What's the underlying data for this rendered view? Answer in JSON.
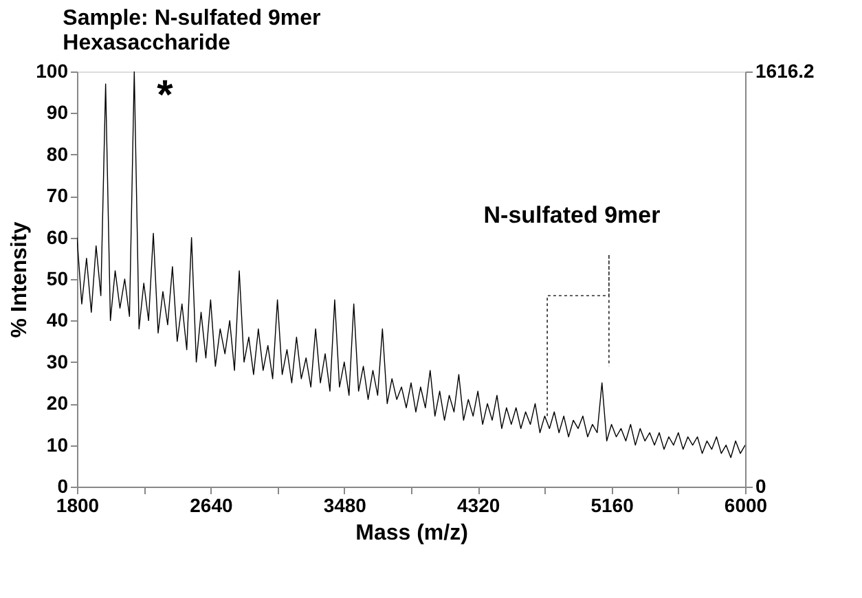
{
  "chart_data": {
    "type": "line",
    "title": "Sample: N-sulfated 9mer\nHexasaccharide",
    "xlabel": "Mass (m/z)",
    "ylabel": "% Intensity",
    "xlim": [
      1800,
      6000
    ],
    "xticks": [
      1800,
      {
        "value": 2220,
        "label": null
      },
      2640,
      {
        "value": 3060,
        "label": null
      },
      3480,
      {
        "value": 3900,
        "label": null
      },
      4320,
      {
        "value": 4740,
        "label": null
      },
      5160,
      {
        "value": 5580,
        "label": null
      },
      6000
    ],
    "ylim": [
      0,
      100
    ],
    "yticks": [
      0,
      10,
      20,
      30,
      40,
      50,
      60,
      70,
      80,
      90,
      100
    ],
    "y2lim": [
      0,
      1616.2
    ],
    "y2ticks": [
      0,
      1616.2
    ],
    "grid": false,
    "marker": "none",
    "annotations": [
      "*",
      "N-sulfated 9mer"
    ],
    "series": [
      {
        "color": "#000000",
        "line_style": "solid",
        "x": [
          1800,
          1830,
          1860,
          1890,
          1920,
          1950,
          1980,
          2010,
          2040,
          2070,
          2100,
          2130,
          2160,
          2190,
          2220,
          2250,
          2280,
          2310,
          2340,
          2370,
          2400,
          2430,
          2460,
          2490,
          2520,
          2550,
          2580,
          2610,
          2640,
          2670,
          2700,
          2730,
          2760,
          2790,
          2820,
          2850,
          2880,
          2910,
          2940,
          2970,
          3000,
          3030,
          3060,
          3090,
          3120,
          3150,
          3180,
          3210,
          3240,
          3270,
          3300,
          3330,
          3360,
          3390,
          3420,
          3450,
          3480,
          3510,
          3540,
          3570,
          3600,
          3630,
          3660,
          3690,
          3720,
          3750,
          3780,
          3810,
          3840,
          3870,
          3900,
          3930,
          3960,
          3990,
          4020,
          4050,
          4080,
          4110,
          4140,
          4170,
          4200,
          4230,
          4260,
          4290,
          4320,
          4350,
          4380,
          4410,
          4440,
          4470,
          4500,
          4530,
          4560,
          4590,
          4620,
          4650,
          4680,
          4710,
          4740,
          4770,
          4800,
          4830,
          4860,
          4890,
          4920,
          4950,
          4980,
          5010,
          5040,
          5070,
          5100,
          5130,
          5160,
          5190,
          5220,
          5250,
          5280,
          5310,
          5340,
          5370,
          5400,
          5430,
          5460,
          5490,
          5520,
          5550,
          5580,
          5610,
          5640,
          5670,
          5700,
          5730,
          5760,
          5790,
          5820,
          5850,
          5880,
          5910,
          5940,
          5970,
          6000
        ],
        "values": [
          60,
          44,
          55,
          42,
          58,
          46,
          97,
          40,
          52,
          43,
          50,
          41,
          100,
          38,
          49,
          40,
          61,
          37,
          47,
          39,
          53,
          35,
          44,
          33,
          60,
          30,
          42,
          31,
          45,
          29,
          38,
          32,
          40,
          28,
          52,
          30,
          36,
          27,
          38,
          28,
          34,
          26,
          45,
          27,
          33,
          25,
          36,
          26,
          31,
          24,
          38,
          25,
          32,
          23,
          45,
          24,
          30,
          22,
          44,
          23,
          29,
          21,
          28,
          22,
          38,
          20,
          26,
          21,
          24,
          19,
          25,
          18,
          24,
          19,
          28,
          17,
          23,
          16,
          22,
          18,
          27,
          16,
          21,
          17,
          23,
          15,
          20,
          16,
          22,
          14,
          19,
          15,
          19,
          14,
          18,
          15,
          20,
          13,
          17,
          14,
          18,
          13,
          17,
          12,
          16,
          14,
          17,
          12,
          15,
          13,
          25,
          11,
          15,
          12,
          14,
          11,
          15,
          10,
          14,
          11,
          13,
          10,
          13,
          9,
          12,
          10,
          13,
          9,
          12,
          10,
          12,
          8,
          11,
          9,
          12,
          8,
          10,
          7,
          11,
          8,
          10
        ]
      },
      {
        "color": "#000000",
        "line_style": "dotted",
        "x": [
          4756,
          4756,
          5144,
          5144,
          5144
        ],
        "values": [
          17,
          46,
          46,
          56,
          29
        ]
      }
    ]
  }
}
